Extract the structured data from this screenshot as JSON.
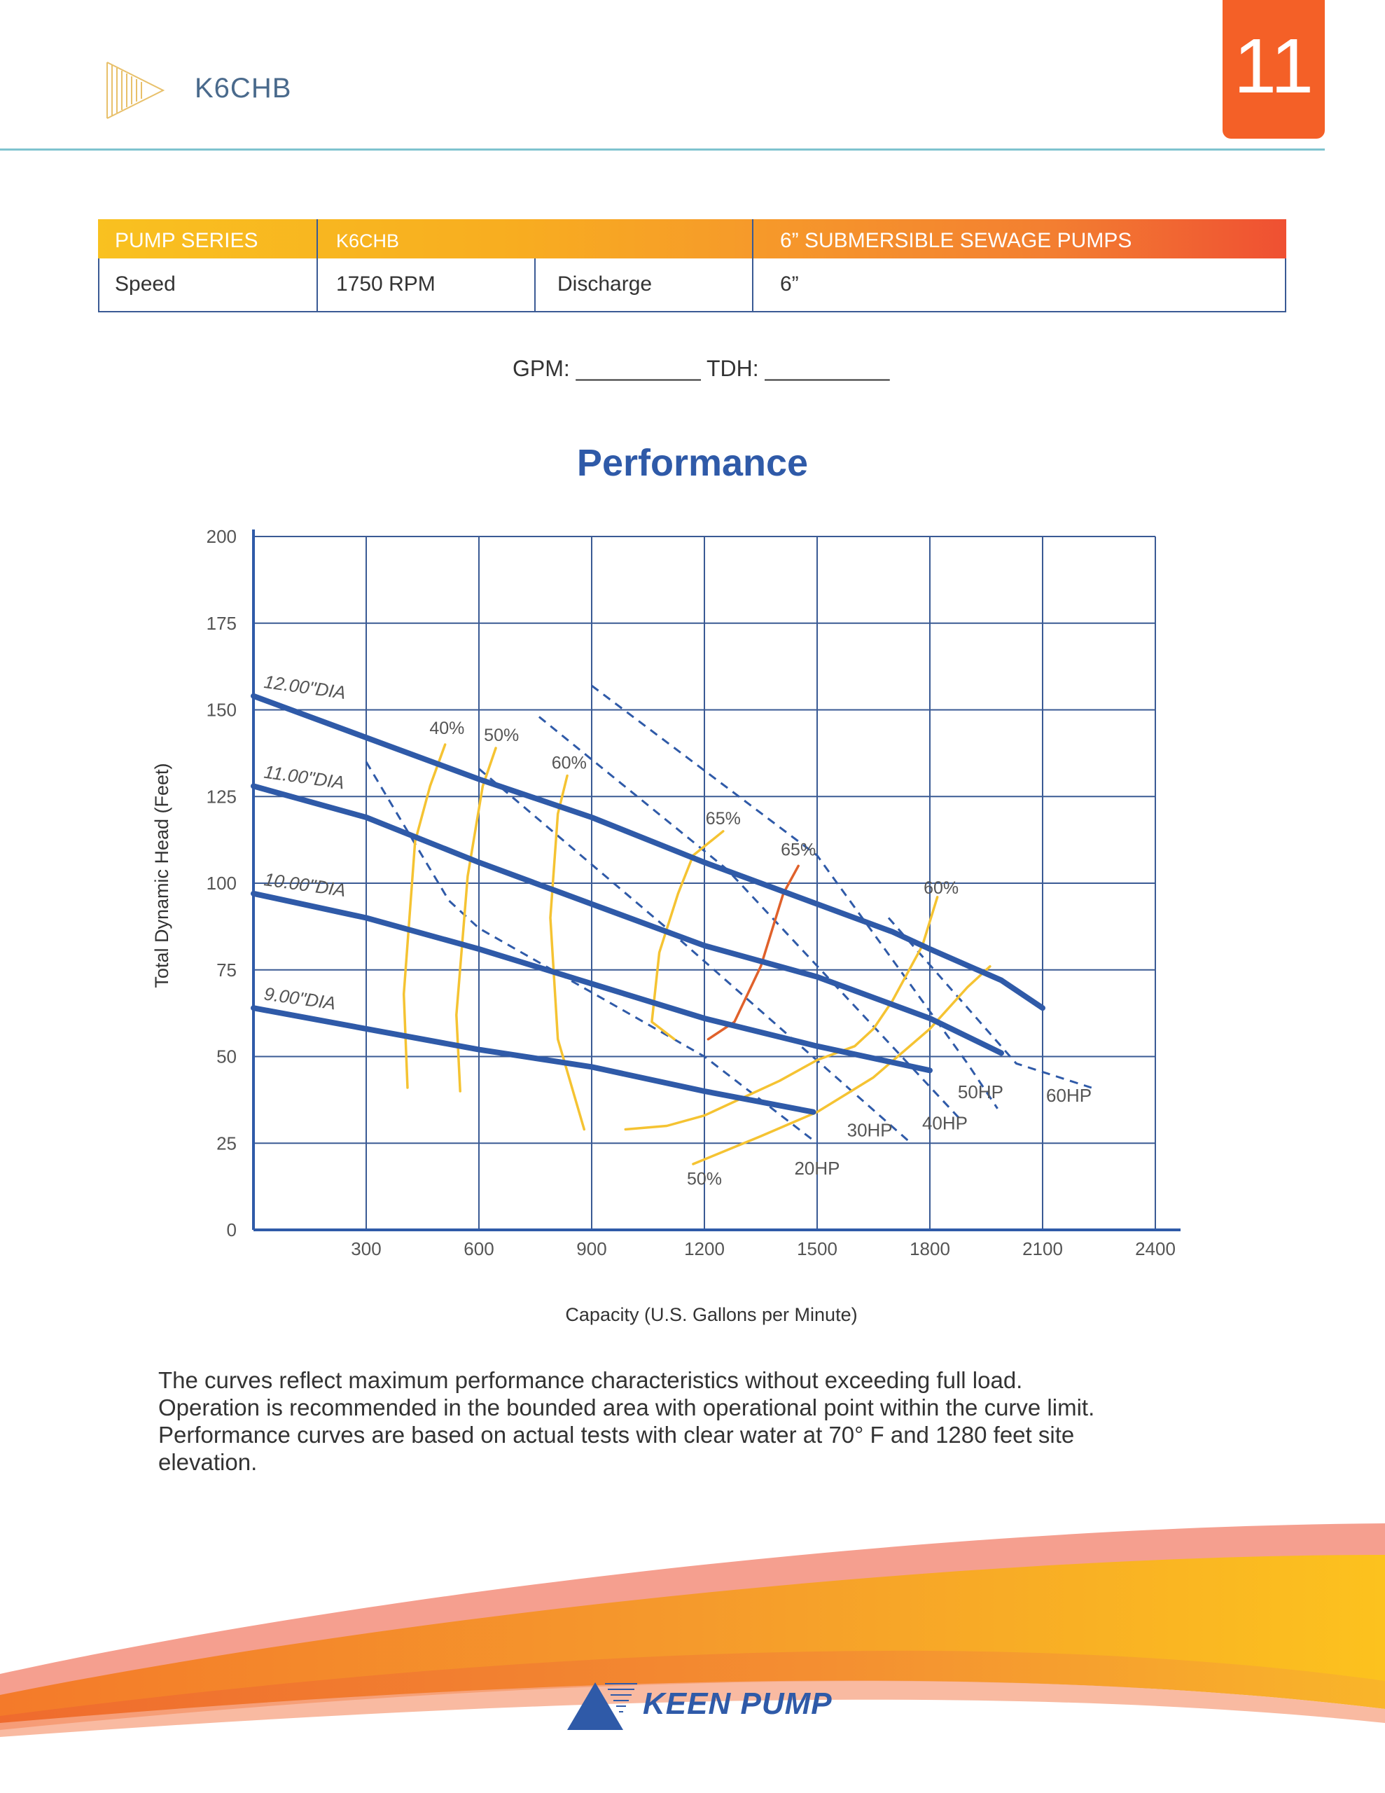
{
  "header": {
    "title": "K6CHB",
    "page_number": "11"
  },
  "spec_table": {
    "head": [
      "PUMP SERIES",
      "K6CHB",
      "6” SUBMERSIBLE SEWAGE PUMPS"
    ],
    "speed_label": "Speed",
    "speed_value": "1750 RPM",
    "discharge_label": "Discharge",
    "discharge_value": "6”"
  },
  "gpm_line": "GPM: __________ TDH: __________",
  "chart_data": {
    "type": "line",
    "title": "Performance",
    "xlabel": "Capacity (U.S. Gallons per Minute)",
    "ylabel": "Total Dynamic Head (Feet)",
    "xlim": [
      0,
      2400
    ],
    "ylim": [
      0,
      200
    ],
    "x_ticks": [
      300,
      600,
      900,
      1200,
      1500,
      1800,
      2100,
      2400
    ],
    "y_ticks": [
      0,
      25,
      50,
      75,
      100,
      125,
      150,
      175,
      200
    ],
    "grid": true,
    "diameter_curves": [
      {
        "name": "12.00\"DIA",
        "points": [
          [
            0,
            154
          ],
          [
            350,
            140
          ],
          [
            600,
            130
          ],
          [
            900,
            119
          ],
          [
            1200,
            106
          ],
          [
            1500,
            94
          ],
          [
            1700,
            86
          ],
          [
            1800,
            81
          ],
          [
            1990,
            72
          ],
          [
            2100,
            64
          ]
        ]
      },
      {
        "name": "11.00\"DIA",
        "points": [
          [
            0,
            128
          ],
          [
            300,
            119
          ],
          [
            600,
            106
          ],
          [
            900,
            94
          ],
          [
            1200,
            82
          ],
          [
            1500,
            73
          ],
          [
            1800,
            61
          ],
          [
            1990,
            51
          ]
        ]
      },
      {
        "name": "10.00\"DIA",
        "points": [
          [
            0,
            97
          ],
          [
            300,
            90
          ],
          [
            600,
            81
          ],
          [
            900,
            71
          ],
          [
            1200,
            61
          ],
          [
            1500,
            53
          ],
          [
            1800,
            46
          ]
        ]
      },
      {
        "name": "9.00\"DIA",
        "points": [
          [
            0,
            64
          ],
          [
            300,
            58
          ],
          [
            600,
            52
          ],
          [
            900,
            47
          ],
          [
            1200,
            40
          ],
          [
            1490,
            34
          ]
        ]
      }
    ],
    "efficiency_curves": [
      {
        "name": "40%",
        "color": "#f5c332",
        "points": [
          [
            410,
            41
          ],
          [
            400,
            68
          ],
          [
            430,
            112
          ],
          [
            470,
            128
          ],
          [
            510,
            140
          ]
        ]
      },
      {
        "name": "50%",
        "color": "#f5c332",
        "points": [
          [
            550,
            40
          ],
          [
            540,
            62
          ],
          [
            570,
            102
          ],
          [
            610,
            128
          ],
          [
            645,
            139
          ]
        ]
      },
      {
        "name": "60%",
        "color": "#f5c332",
        "points": [
          [
            880,
            29
          ],
          [
            810,
            55
          ],
          [
            790,
            90
          ],
          [
            810,
            120
          ],
          [
            835,
            131
          ]
        ]
      },
      {
        "name": "65%",
        "color": "#f5c332",
        "points": [
          [
            1120,
            55
          ],
          [
            1060,
            60
          ],
          [
            1080,
            80
          ],
          [
            1130,
            97
          ],
          [
            1170,
            108
          ],
          [
            1250,
            115
          ]
        ]
      },
      {
        "name": "65%",
        "color": "#e0612b",
        "points": [
          [
            1210,
            55
          ],
          [
            1280,
            60
          ],
          [
            1350,
            76
          ],
          [
            1410,
            97
          ],
          [
            1450,
            105
          ]
        ]
      },
      {
        "name": "50%",
        "color": "#f5c332",
        "points": [
          [
            990,
            29
          ],
          [
            1100,
            30
          ],
          [
            1200,
            33
          ],
          [
            1300,
            38
          ],
          [
            1400,
            43
          ],
          [
            1500,
            49
          ],
          [
            1600,
            53
          ],
          [
            1650,
            58
          ],
          [
            1700,
            66
          ],
          [
            1780,
            82
          ],
          [
            1820,
            96
          ]
        ]
      },
      {
        "name": "60%",
        "color": "#f5c332",
        "points": [
          [
            1170,
            19
          ],
          [
            1350,
            27
          ],
          [
            1500,
            34
          ],
          [
            1650,
            44
          ],
          [
            1800,
            58
          ],
          [
            1900,
            70
          ],
          [
            1960,
            76
          ]
        ]
      }
    ],
    "efficiency_labels": [
      {
        "text": "40%",
        "x": 515,
        "y": 143
      },
      {
        "text": "50%",
        "x": 660,
        "y": 141
      },
      {
        "text": "60%",
        "x": 840,
        "y": 133
      },
      {
        "text": "65%",
        "x": 1250,
        "y": 117
      },
      {
        "text": "65%",
        "x": 1450,
        "y": 108
      },
      {
        "text": "60%",
        "x": 1830,
        "y": 97
      },
      {
        "text": "50%",
        "x": 1200,
        "y": 13
      }
    ],
    "power_lines": [
      {
        "name": "20HP",
        "points": [
          [
            300,
            135
          ],
          [
            520,
            95
          ],
          [
            600,
            87
          ],
          [
            1200,
            50
          ],
          [
            1500,
            25
          ]
        ],
        "label_x": 1500,
        "label_y": 16
      },
      {
        "name": "30HP",
        "points": [
          [
            600,
            133
          ],
          [
            1100,
            87
          ],
          [
            1750,
            25
          ]
        ],
        "label_x": 1640,
        "label_y": 27
      },
      {
        "name": "40HP",
        "points": [
          [
            760,
            148
          ],
          [
            1260,
            104
          ],
          [
            1880,
            32
          ]
        ],
        "label_x": 1840,
        "label_y": 29
      },
      {
        "name": "50HP",
        "points": [
          [
            900,
            157
          ],
          [
            1500,
            108
          ],
          [
            1900,
            48
          ],
          [
            1980,
            35
          ]
        ],
        "label_x": 1935,
        "label_y": 38
      },
      {
        "name": "60HP",
        "points": [
          [
            1690,
            90
          ],
          [
            2030,
            48
          ],
          [
            2230,
            41
          ]
        ],
        "label_x": 2170,
        "label_y": 37
      }
    ]
  },
  "footnote": [
    "The curves reflect maximum performance characteristics without exceeding full load.",
    "Operation is recommended in the bounded area with operational point within the curve limit.",
    "Performance curves are based on actual tests with clear water at 70° F and 1280 feet site",
    "elevation."
  ],
  "brand": {
    "name": "KEEN PUMP"
  }
}
